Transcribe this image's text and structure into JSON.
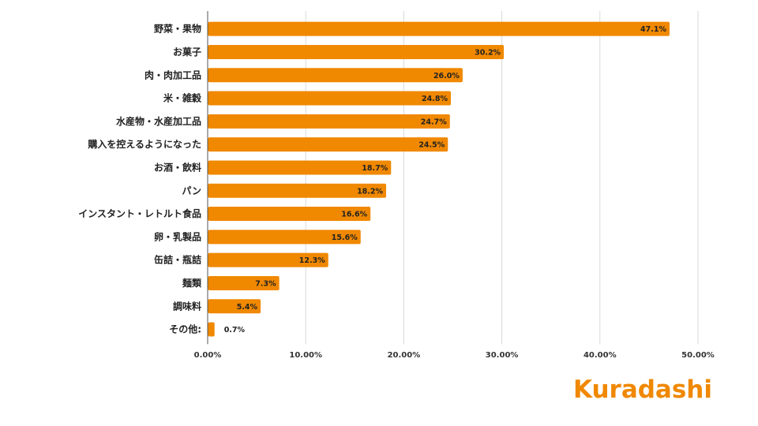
{
  "chart_data": {
    "type": "bar",
    "orientation": "horizontal",
    "categories": [
      "野菜・果物",
      "お菓子",
      "肉・肉加工品",
      "米・雑穀",
      "水産物・水産加工品",
      "購入を控えるようになった",
      "お酒・飲料",
      "パン",
      "インスタント・レトルト食品",
      "卵・乳製品",
      "缶詰・瓶詰",
      "麺類",
      "調味料",
      "その他:"
    ],
    "values": [
      47.1,
      30.2,
      26.0,
      24.8,
      24.7,
      24.5,
      18.7,
      18.2,
      16.6,
      15.6,
      12.3,
      7.3,
      5.4,
      0.7
    ],
    "value_labels": [
      "47.1%",
      "30.2%",
      "26.0%",
      "24.8%",
      "24.7%",
      "24.5%",
      "18.7%",
      "18.2%",
      "16.6%",
      "15.6%",
      "12.3%",
      "7.3%",
      "5.4%",
      "0.7%"
    ],
    "x_ticks": [
      "0.00%",
      "10.00%",
      "20.00%",
      "30.00%",
      "40.00%",
      "50.00%"
    ],
    "xlim": [
      0,
      50
    ],
    "grid": "vertical",
    "bar_color": "#f08800",
    "title": "",
    "xlabel": "",
    "ylabel": ""
  },
  "brand": {
    "logo_text": "Kuradashi",
    "color": "#f08800"
  }
}
